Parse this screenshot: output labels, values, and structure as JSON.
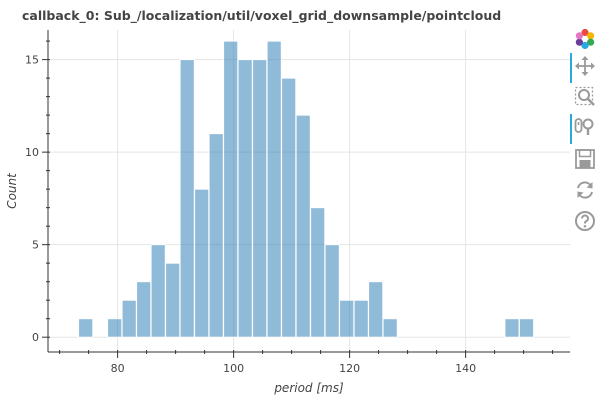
{
  "chart_data": {
    "type": "bar",
    "title": "callback_0: Sub_/localization/util/voxel_grid_downsample/pointcloud",
    "xlabel": "period [ms]",
    "ylabel": "Count",
    "xlim": [
      68,
      158
    ],
    "ylim": [
      -0.8,
      16.6
    ],
    "x_ticks": [
      80,
      100,
      120,
      140
    ],
    "y_ticks": [
      0,
      5,
      10,
      15
    ],
    "bin_width": 2.45,
    "bins": [
      {
        "x": 74.5,
        "count": 1
      },
      {
        "x": 79.5,
        "count": 1
      },
      {
        "x": 82.0,
        "count": 2
      },
      {
        "x": 84.5,
        "count": 3
      },
      {
        "x": 87.0,
        "count": 5
      },
      {
        "x": 89.5,
        "count": 4
      },
      {
        "x": 92.0,
        "count": 15
      },
      {
        "x": 94.5,
        "count": 8
      },
      {
        "x": 97.0,
        "count": 11
      },
      {
        "x": 99.5,
        "count": 16
      },
      {
        "x": 102.0,
        "count": 15
      },
      {
        "x": 104.5,
        "count": 15
      },
      {
        "x": 107.0,
        "count": 16
      },
      {
        "x": 109.5,
        "count": 14
      },
      {
        "x": 112.0,
        "count": 12
      },
      {
        "x": 114.5,
        "count": 7
      },
      {
        "x": 117.0,
        "count": 5
      },
      {
        "x": 119.5,
        "count": 2
      },
      {
        "x": 122.0,
        "count": 2
      },
      {
        "x": 124.5,
        "count": 3
      },
      {
        "x": 127.0,
        "count": 1
      },
      {
        "x": 148.0,
        "count": 1
      },
      {
        "x": 150.5,
        "count": 1
      }
    ],
    "bar_color": "#1f77b4",
    "bar_alpha": 0.5,
    "grid": true,
    "legend": "none"
  },
  "toolbar": {
    "logo": "bokeh-logo-icon",
    "tools": [
      {
        "name": "pan-icon",
        "active": true
      },
      {
        "name": "box-zoom-icon",
        "active": false
      },
      {
        "name": "wheel-zoom-icon",
        "active": true
      },
      {
        "name": "save-icon",
        "active": false
      },
      {
        "name": "reset-icon",
        "active": false
      },
      {
        "name": "help-icon",
        "active": false
      }
    ],
    "icon_color": "#9a9a9a",
    "active_color": "#26aae1"
  }
}
